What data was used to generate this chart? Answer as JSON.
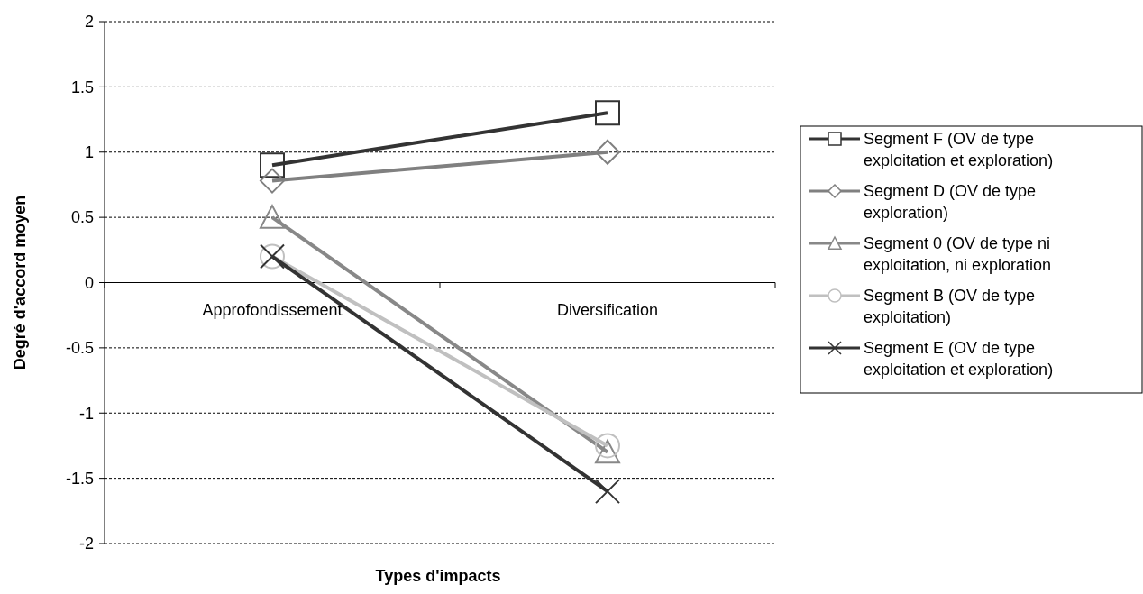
{
  "chart_data": {
    "type": "line",
    "xlabel": "Types d'impacts",
    "ylabel": "Degré d'accord moyen",
    "categories": [
      "Approfondissement",
      "Diversification"
    ],
    "ylim": [
      -2,
      2
    ],
    "yticks": [
      -2,
      -1.5,
      -1,
      -0.5,
      0,
      0.5,
      1,
      1.5,
      2
    ],
    "grid": "y",
    "legend": "right",
    "series": [
      {
        "name": "Segment F (OV de type exploitation et exploration)",
        "color": "#333333",
        "marker": "square",
        "values": [
          0.9,
          1.3
        ]
      },
      {
        "name": "Segment D (OV de type exploration)",
        "color": "#808080",
        "marker": "diamond",
        "values": [
          0.78,
          1.0
        ]
      },
      {
        "name": "Segment 0 (OV de type ni exploitation, ni exploration",
        "color": "#888888",
        "marker": "triangle",
        "values": [
          0.5,
          -1.3
        ]
      },
      {
        "name": "Segment B (OV de type exploitation)",
        "color": "#c0c0c0",
        "marker": "circle",
        "values": [
          0.2,
          -1.25
        ]
      },
      {
        "name": "Segment E (OV de type exploitation et exploration)",
        "color": "#333333",
        "marker": "cross",
        "values": [
          0.2,
          -1.6
        ]
      }
    ]
  }
}
